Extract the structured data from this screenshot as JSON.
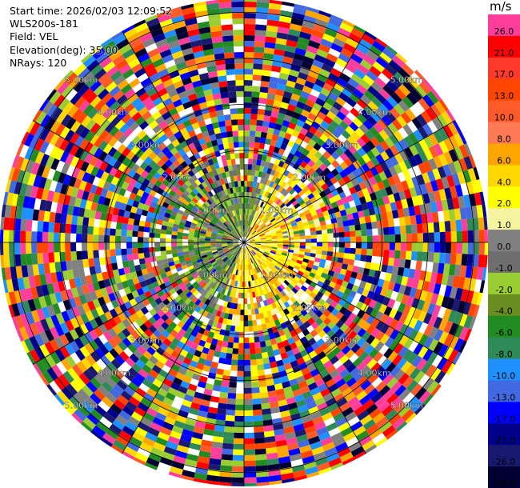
{
  "header": {
    "start_time": "Start time: 2026/02/03 12:09:52",
    "instrument": "WLS200s-181",
    "field": "Field: VEL",
    "elevation": "Elevation(deg): 35.00",
    "nrays": "NRays: 120"
  },
  "colorbar": {
    "unit": "m/s",
    "levels": [
      {
        "label": "26.0",
        "color": "#ff3d9a"
      },
      {
        "label": "21.0",
        "color": "#ff0000"
      },
      {
        "label": "17.0",
        "color": "#ff3a2a"
      },
      {
        "label": "13.0",
        "color": "#ff4500"
      },
      {
        "label": "10.0",
        "color": "#ff5a2a"
      },
      {
        "label": "8.0",
        "color": "#ff7a55"
      },
      {
        "label": "6.0",
        "color": "#ffa500"
      },
      {
        "label": "4.0",
        "color": "#ffd700"
      },
      {
        "label": "2.0",
        "color": "#ffff00"
      },
      {
        "label": "1.0",
        "color": "#f5f5a0"
      },
      {
        "label": "0.0",
        "color": "#808080"
      },
      {
        "label": "-1.0",
        "color": "#6e6e6e"
      },
      {
        "label": "-2.0",
        "color": "#9acd32"
      },
      {
        "label": "-4.0",
        "color": "#6b8e23"
      },
      {
        "label": "-6.0",
        "color": "#228b22"
      },
      {
        "label": "-8.0",
        "color": "#2e8b57"
      },
      {
        "label": "-10.0",
        "color": "#1e90ff"
      },
      {
        "label": "-13.0",
        "color": "#4169e1"
      },
      {
        "label": "-17.0",
        "color": "#0000ff"
      },
      {
        "label": "-21.0",
        "color": "#00008b"
      },
      {
        "label": "-26.0",
        "color": "#191970"
      },
      {
        "label": "-30.0",
        "color": "#000033"
      }
    ]
  },
  "chart_data": {
    "type": "heatmap",
    "projection": "polar",
    "field": "VEL",
    "units": "m/s",
    "rays": 120,
    "range_rings_km": [
      1.0,
      2.0,
      3.0,
      4.0,
      5.0
    ],
    "range_labels": [
      "1.00km",
      "2.00km",
      "3.00km",
      "4.00km",
      "5.00km"
    ],
    "max_range_km": 5.3,
    "grid": true
  }
}
